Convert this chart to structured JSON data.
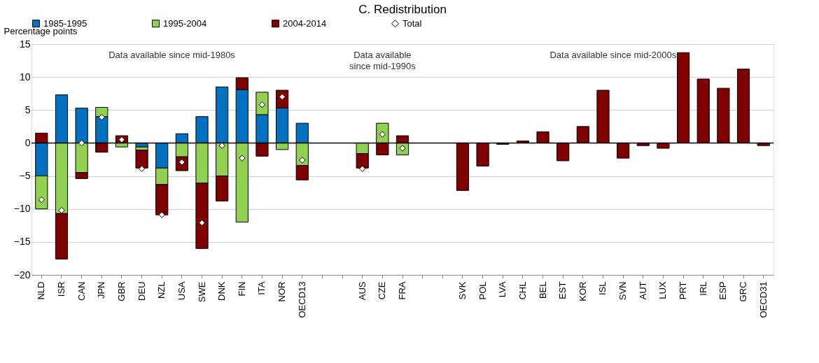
{
  "chart_data": {
    "type": "bar",
    "stacked": true,
    "title": "C. Redistribution",
    "ylabel": "Percentage points",
    "categories": [
      "NLD",
      "ISR",
      "CAN",
      "JPN",
      "GBR",
      "DEU",
      "NZL",
      "USA",
      "SWE",
      "DNK",
      "FIN",
      "ITA",
      "NOR",
      "OECD13",
      null,
      null,
      "AUS",
      "CZE",
      "FRA",
      null,
      null,
      "SVK",
      "POL",
      "LVA",
      "CHL",
      "BEL",
      "EST",
      "KOR",
      "ISL",
      "SVN",
      "AUT",
      "LUX",
      "PRT",
      "IRL",
      "ESP",
      "GRC",
      "OECD31"
    ],
    "series": [
      {
        "name": "1985-1995",
        "color": "#0070c0",
        "values": [
          -5,
          7.3,
          5.3,
          4.0,
          null,
          -0.6,
          -3.8,
          1.4,
          4.0,
          8.5,
          8.1,
          4.3,
          5.3,
          3.0,
          null,
          null,
          null,
          null,
          null,
          null,
          null,
          null,
          null,
          null,
          null,
          null,
          null,
          null,
          null,
          null,
          null,
          null,
          null,
          null,
          null,
          null,
          null
        ]
      },
      {
        "name": "1995-2004",
        "color": "#92d050",
        "values": [
          -5,
          -10.7,
          -4.5,
          1.4,
          -0.6,
          -0.5,
          -2.5,
          -2.1,
          -6.1,
          -5,
          -12.0,
          3.4,
          -1.0,
          -3.4,
          null,
          null,
          -1.6,
          3.0,
          -1.8,
          null,
          null,
          null,
          null,
          null,
          null,
          null,
          null,
          null,
          null,
          null,
          null,
          null,
          null,
          null,
          null,
          null,
          null
        ]
      },
      {
        "name": "2004-2014",
        "color": "#7f0000",
        "values": [
          1.5,
          -6.9,
          -0.9,
          -1.4,
          1.1,
          -2.7,
          -4.6,
          -2.1,
          -9.9,
          -3.8,
          1.8,
          -2.0,
          2.7,
          -2.2,
          null,
          null,
          -2.2,
          -1.8,
          1.1,
          null,
          null,
          -7.2,
          -3.5,
          -0.2,
          0.3,
          1.7,
          -2.7,
          2.5,
          8.0,
          -2.3,
          -0.4,
          -0.8,
          13.7,
          9.7,
          8.3,
          11.2,
          -0.4
        ]
      },
      {
        "name": "Total",
        "type": "scatter",
        "marker": "diamond",
        "color": "#ffffff",
        "values": [
          -8.6,
          -10.2,
          0,
          3.9,
          0.5,
          -3.9,
          -10.9,
          -2.9,
          -12.1,
          -0.4,
          -2.3,
          5.8,
          7.0,
          -2.6,
          null,
          null,
          -3.9,
          1.3,
          -0.8,
          null,
          null,
          null,
          null,
          null,
          null,
          null,
          null,
          null,
          null,
          null,
          null,
          null,
          null,
          null,
          null,
          null,
          null
        ]
      }
    ],
    "ylim": [
      -20,
      15
    ],
    "yticks": [
      -20,
      -15,
      -10,
      -5,
      0,
      5,
      10,
      15
    ],
    "grid": "y",
    "legend": "top",
    "annotations": [
      "Data available since mid-1980s",
      "Data available since mid-1990s",
      "Data available since mid-2000s"
    ]
  }
}
